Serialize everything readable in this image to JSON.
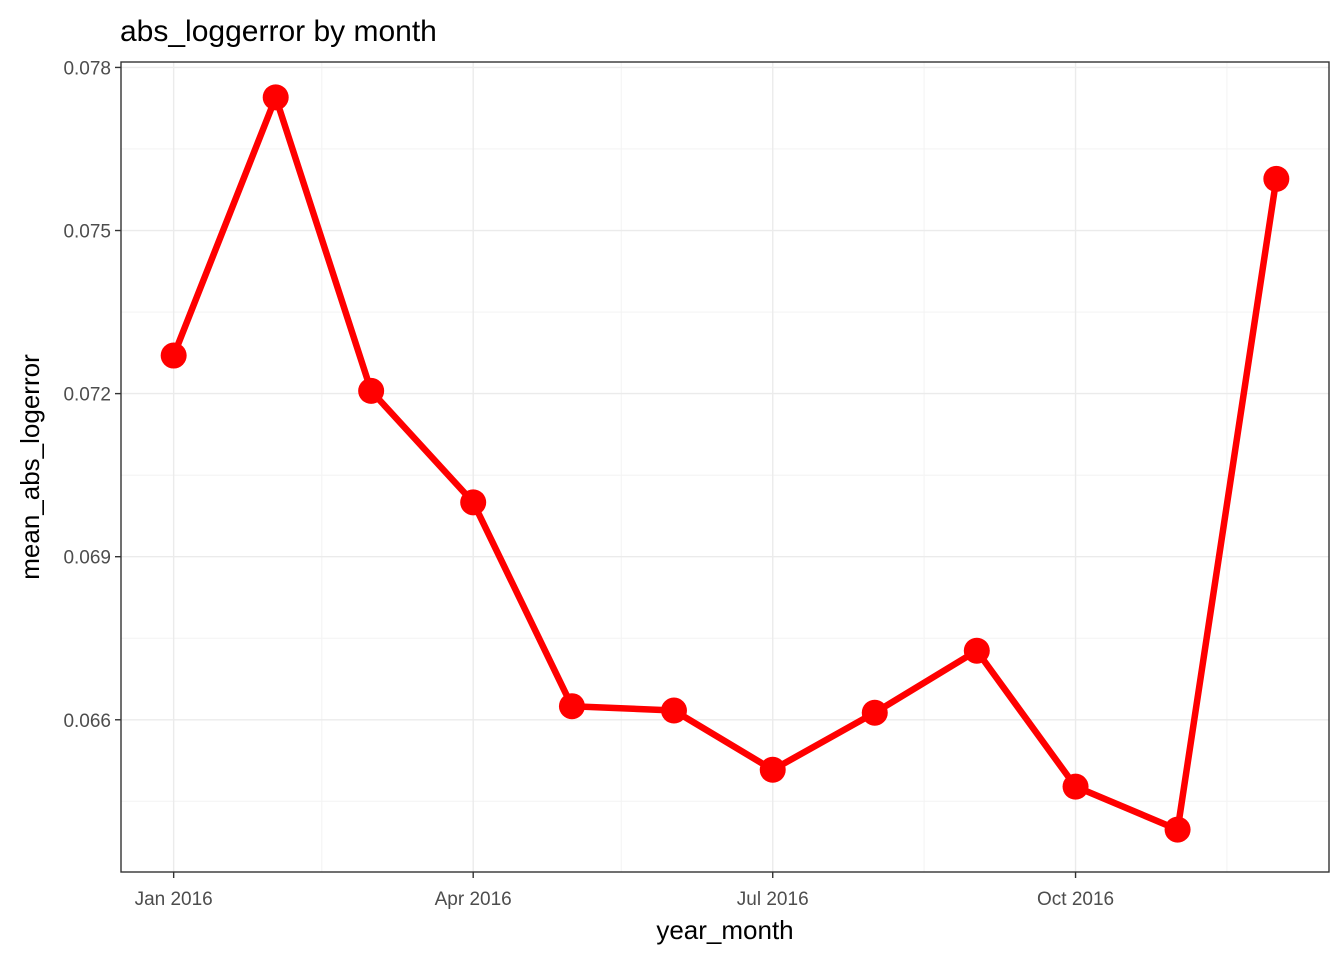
{
  "chart_data": {
    "type": "line",
    "title": "abs_loggerror by month",
    "xlabel": "year_month",
    "ylabel": "mean_abs_logerror",
    "x": [
      "2016-01-01",
      "2016-02-01",
      "2016-03-01",
      "2016-04-01",
      "2016-05-01",
      "2016-06-01",
      "2016-07-01",
      "2016-08-01",
      "2016-09-01",
      "2016-10-01",
      "2016-11-01",
      "2016-12-01"
    ],
    "series": [
      {
        "values": [
          0.0727,
          0.07745,
          0.07205,
          0.07,
          0.06625,
          0.06617,
          0.06508,
          0.06613,
          0.06727,
          0.06477,
          0.06398,
          0.07595
        ]
      }
    ],
    "x_ticks": [
      {
        "date": "2016-01-01",
        "label": "Jan 2016"
      },
      {
        "date": "2016-04-01",
        "label": "Apr 2016"
      },
      {
        "date": "2016-07-01",
        "label": "Jul 2016"
      },
      {
        "date": "2016-10-01",
        "label": "Oct 2016"
      }
    ],
    "xlim": [
      "2015-12-16",
      "2016-12-17"
    ],
    "x_minor_ticks": [
      "2016-02-15",
      "2016-05-16",
      "2016-08-16",
      "2016-11-16"
    ],
    "y_ticks": [
      0.066,
      0.069,
      0.072,
      0.075,
      0.078
    ],
    "y_tick_labels": [
      "0.066",
      "0.069",
      "0.072",
      "0.075",
      "0.078"
    ],
    "ylim": [
      0.0632,
      0.0781
    ],
    "grid": true,
    "line_color": "#ff0000",
    "point_color": "#ff0000",
    "theme": "bw"
  }
}
